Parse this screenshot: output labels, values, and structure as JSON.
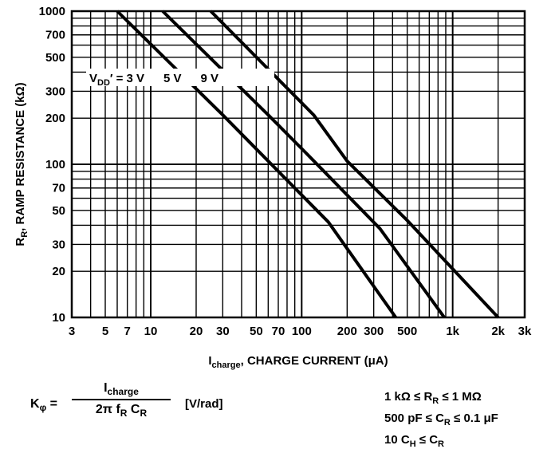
{
  "chart_data": {
    "type": "line",
    "x_scale": "log",
    "y_scale": "log",
    "xlim": [
      3,
      3000
    ],
    "ylim": [
      10,
      1000
    ],
    "grid": true,
    "x_ticks": [
      "3",
      "5",
      "7",
      "10",
      "20",
      "30",
      "50",
      "70",
      "100",
      "200",
      "300",
      "500",
      "1k",
      "2k",
      "3k"
    ],
    "y_ticks": [
      "10",
      "20",
      "30",
      "50",
      "70",
      "100",
      "200",
      "300",
      "500",
      "700",
      "1000"
    ],
    "xlabel": {
      "main": "I",
      "sub": "charge",
      "rest": ", CHARGE CURRENT (μA)"
    },
    "ylabel": {
      "main": "R",
      "sub": "R",
      "rest": ", RAMP RESISTANCE (kΩ)"
    },
    "series_label_prefix": {
      "main": "V",
      "sub": "DD",
      "rest": "′ ="
    },
    "series": [
      {
        "name": "3 V",
        "x": [
          6,
          30,
          70,
          150,
          420
        ],
        "y": [
          1000,
          210,
          90,
          42,
          10
        ]
      },
      {
        "name": "5 V",
        "x": [
          12,
          60,
          110,
          330,
          880
        ],
        "y": [
          1000,
          210,
          115,
          38,
          10
        ]
      },
      {
        "name": "9 V",
        "x": [
          25,
          120,
          200,
          500,
          2000
        ],
        "y": [
          1000,
          210,
          105,
          43,
          10
        ]
      }
    ]
  },
  "formula": {
    "lhs_main": "K",
    "lhs_sub": "φ",
    "equals": "=",
    "numerator_main": "I",
    "numerator_sub": "charge",
    "denominator_prefix": "2π f",
    "denominator_f_sub": "R",
    "denominator_c": " C",
    "denominator_c_sub": "R",
    "unit": "[V/rad]"
  },
  "conditions": [
    {
      "a": "1 kΩ ≤ R",
      "sub": "R",
      "b": " ≤ 1 MΩ"
    },
    {
      "a": "500 pF ≤ C",
      "sub": "R",
      "b": " ≤ 0.1 μF"
    },
    {
      "a": "10 C",
      "sub": "H",
      "b": " ≤ C",
      "sub2": "R"
    }
  ]
}
